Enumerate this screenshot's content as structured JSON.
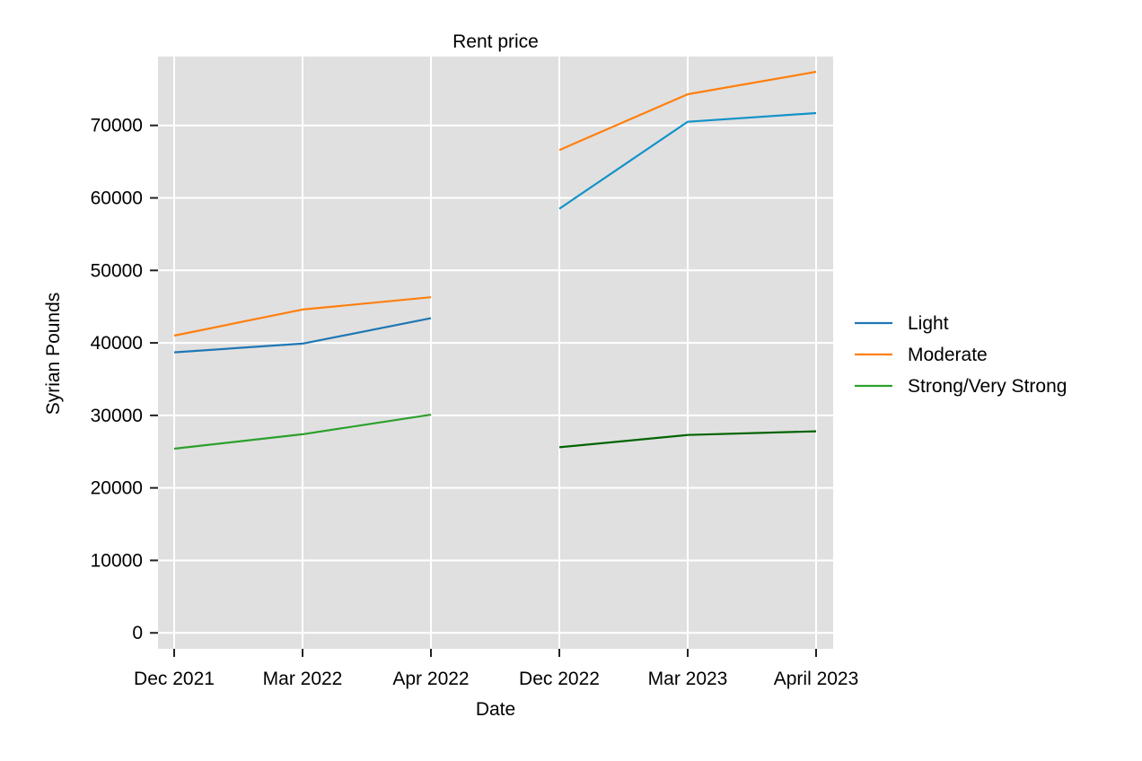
{
  "chart_data": {
    "type": "line",
    "title": "Rent price",
    "xlabel": "Date",
    "ylabel": "Syrian Pounds",
    "categories": [
      "Dec 2021",
      "Mar 2022",
      "Apr 2022",
      "Dec 2022",
      "Mar 2023",
      "April 2023"
    ],
    "segments": [
      [
        0,
        1,
        2
      ],
      [
        3,
        4,
        5
      ]
    ],
    "yticks": [
      0,
      10000,
      20000,
      30000,
      40000,
      50000,
      60000,
      70000
    ],
    "ylim": [
      -2200,
      79500
    ],
    "grid": true,
    "legend_position": "right",
    "background": "#e0e0e0",
    "series": [
      {
        "name": "Light",
        "color": "#1f77b4",
        "values": [
          38700,
          39900,
          43400,
          58500,
          70500,
          71700
        ],
        "segment_colors": [
          "#1f77b4",
          "#1192c9"
        ]
      },
      {
        "name": "Moderate",
        "color": "#ff7f0e",
        "values": [
          41000,
          44600,
          46300,
          66600,
          74300,
          77400
        ],
        "segment_colors": [
          "#ff7f0e",
          "#ff7f0e"
        ]
      },
      {
        "name": "Strong/Very Strong",
        "color": "#2ca02c",
        "values": [
          25400,
          27400,
          30100,
          25600,
          27300,
          27800
        ],
        "segment_colors": [
          "#2ca02c",
          "#006400"
        ]
      }
    ]
  }
}
